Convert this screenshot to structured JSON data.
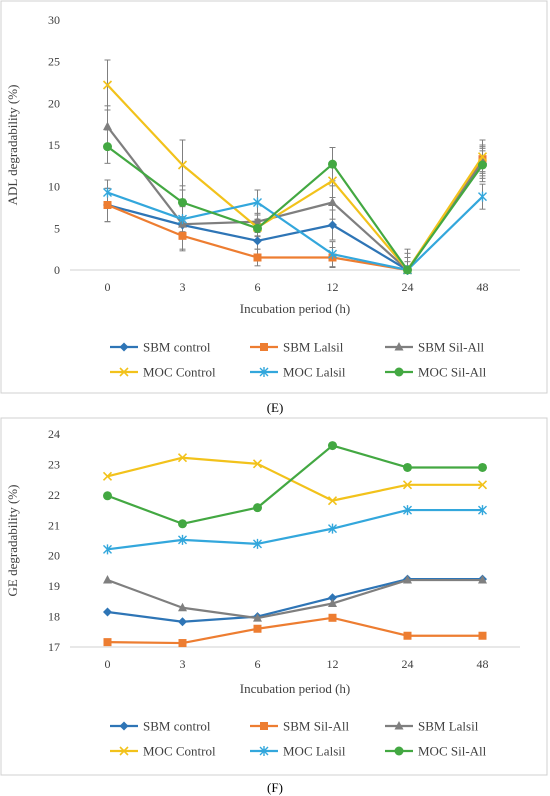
{
  "chart_data": [
    {
      "type": "line",
      "panel_label": "(E)",
      "xlabel": "Incubation period (h)",
      "ylabel": "ADL degradability (%)",
      "ylim": [
        0,
        30
      ],
      "yticks": [
        0,
        5,
        10,
        15,
        20,
        25,
        30
      ],
      "categories": [
        "0",
        "3",
        "6",
        "12",
        "24",
        "48"
      ],
      "grid": false,
      "legend_position": "bottom",
      "error_bars": true,
      "series": [
        {
          "name": "SBM control",
          "color": "#2e75b6",
          "marker": "diamond",
          "values": [
            7.8,
            5.4,
            3.5,
            5.4,
            0.0,
            12.8
          ],
          "errors": [
            2.0,
            1.0,
            1.0,
            1.8,
            0.5,
            1.5
          ]
        },
        {
          "name": "SBM Lalsil",
          "color": "#ed7d31",
          "marker": "square",
          "values": [
            7.8,
            4.1,
            1.5,
            1.5,
            0.0,
            13.3
          ],
          "errors": [
            2.0,
            1.8,
            1.0,
            1.2,
            0.5,
            1.5
          ]
        },
        {
          "name": "SBM Sil-All",
          "color": "#7f7f7f",
          "marker": "triangle",
          "values": [
            17.2,
            5.5,
            5.8,
            8.1,
            0.0,
            13.0
          ],
          "errors": [
            2.5,
            3.0,
            1.0,
            2.0,
            2.5,
            2.0
          ]
        },
        {
          "name": "MOC Control",
          "color": "#f2c21b",
          "marker": "x",
          "values": [
            22.2,
            12.6,
            5.1,
            10.7,
            0.0,
            13.6
          ],
          "errors": [
            3.0,
            3.0,
            1.0,
            2.0,
            2.0,
            2.0
          ]
        },
        {
          "name": "MOC Lalsil",
          "color": "#33a7dc",
          "marker": "star",
          "values": [
            9.3,
            6.1,
            8.1,
            1.9,
            0.0,
            8.8
          ],
          "errors": [
            1.5,
            1.5,
            1.5,
            1.5,
            1.5,
            1.5
          ]
        },
        {
          "name": "MOC Sil-All",
          "color": "#43a842",
          "marker": "circle",
          "values": [
            14.8,
            8.1,
            5.0,
            12.7,
            0.0,
            12.6
          ],
          "errors": [
            2.0,
            2.0,
            1.0,
            2.0,
            1.0,
            2.0
          ]
        }
      ]
    },
    {
      "type": "line",
      "panel_label": "(F)",
      "xlabel": "Incubation period (h)",
      "ylabel": "GE degradability (%)",
      "ylim": [
        17,
        24
      ],
      "yticks": [
        17,
        18,
        19,
        20,
        21,
        22,
        23,
        24
      ],
      "categories": [
        "0",
        "3",
        "6",
        "12",
        "24",
        "48"
      ],
      "grid": false,
      "legend_position": "bottom",
      "error_bars": false,
      "series": [
        {
          "name": "SBM control",
          "color": "#2e75b6",
          "marker": "diamond",
          "values": [
            18.15,
            17.83,
            18.0,
            18.62,
            19.23,
            19.23
          ]
        },
        {
          "name": "SBM Sil-All",
          "color": "#ed7d31",
          "marker": "square",
          "values": [
            17.16,
            17.13,
            17.6,
            17.96,
            17.37,
            17.37
          ]
        },
        {
          "name": "SBM Lalsil",
          "color": "#7f7f7f",
          "marker": "triangle",
          "values": [
            19.2,
            18.29,
            17.95,
            18.43,
            19.2,
            19.2
          ]
        },
        {
          "name": "MOC Control",
          "color": "#f2c21b",
          "marker": "x",
          "values": [
            22.61,
            23.22,
            23.02,
            21.81,
            22.33,
            22.33
          ]
        },
        {
          "name": "MOC Lalsil",
          "color": "#33a7dc",
          "marker": "star",
          "values": [
            20.21,
            20.52,
            20.39,
            20.89,
            21.5,
            21.5
          ]
        },
        {
          "name": "MOC Sil-All",
          "color": "#43a842",
          "marker": "circle",
          "values": [
            21.97,
            21.05,
            21.58,
            23.62,
            22.9,
            22.9
          ]
        }
      ]
    }
  ]
}
